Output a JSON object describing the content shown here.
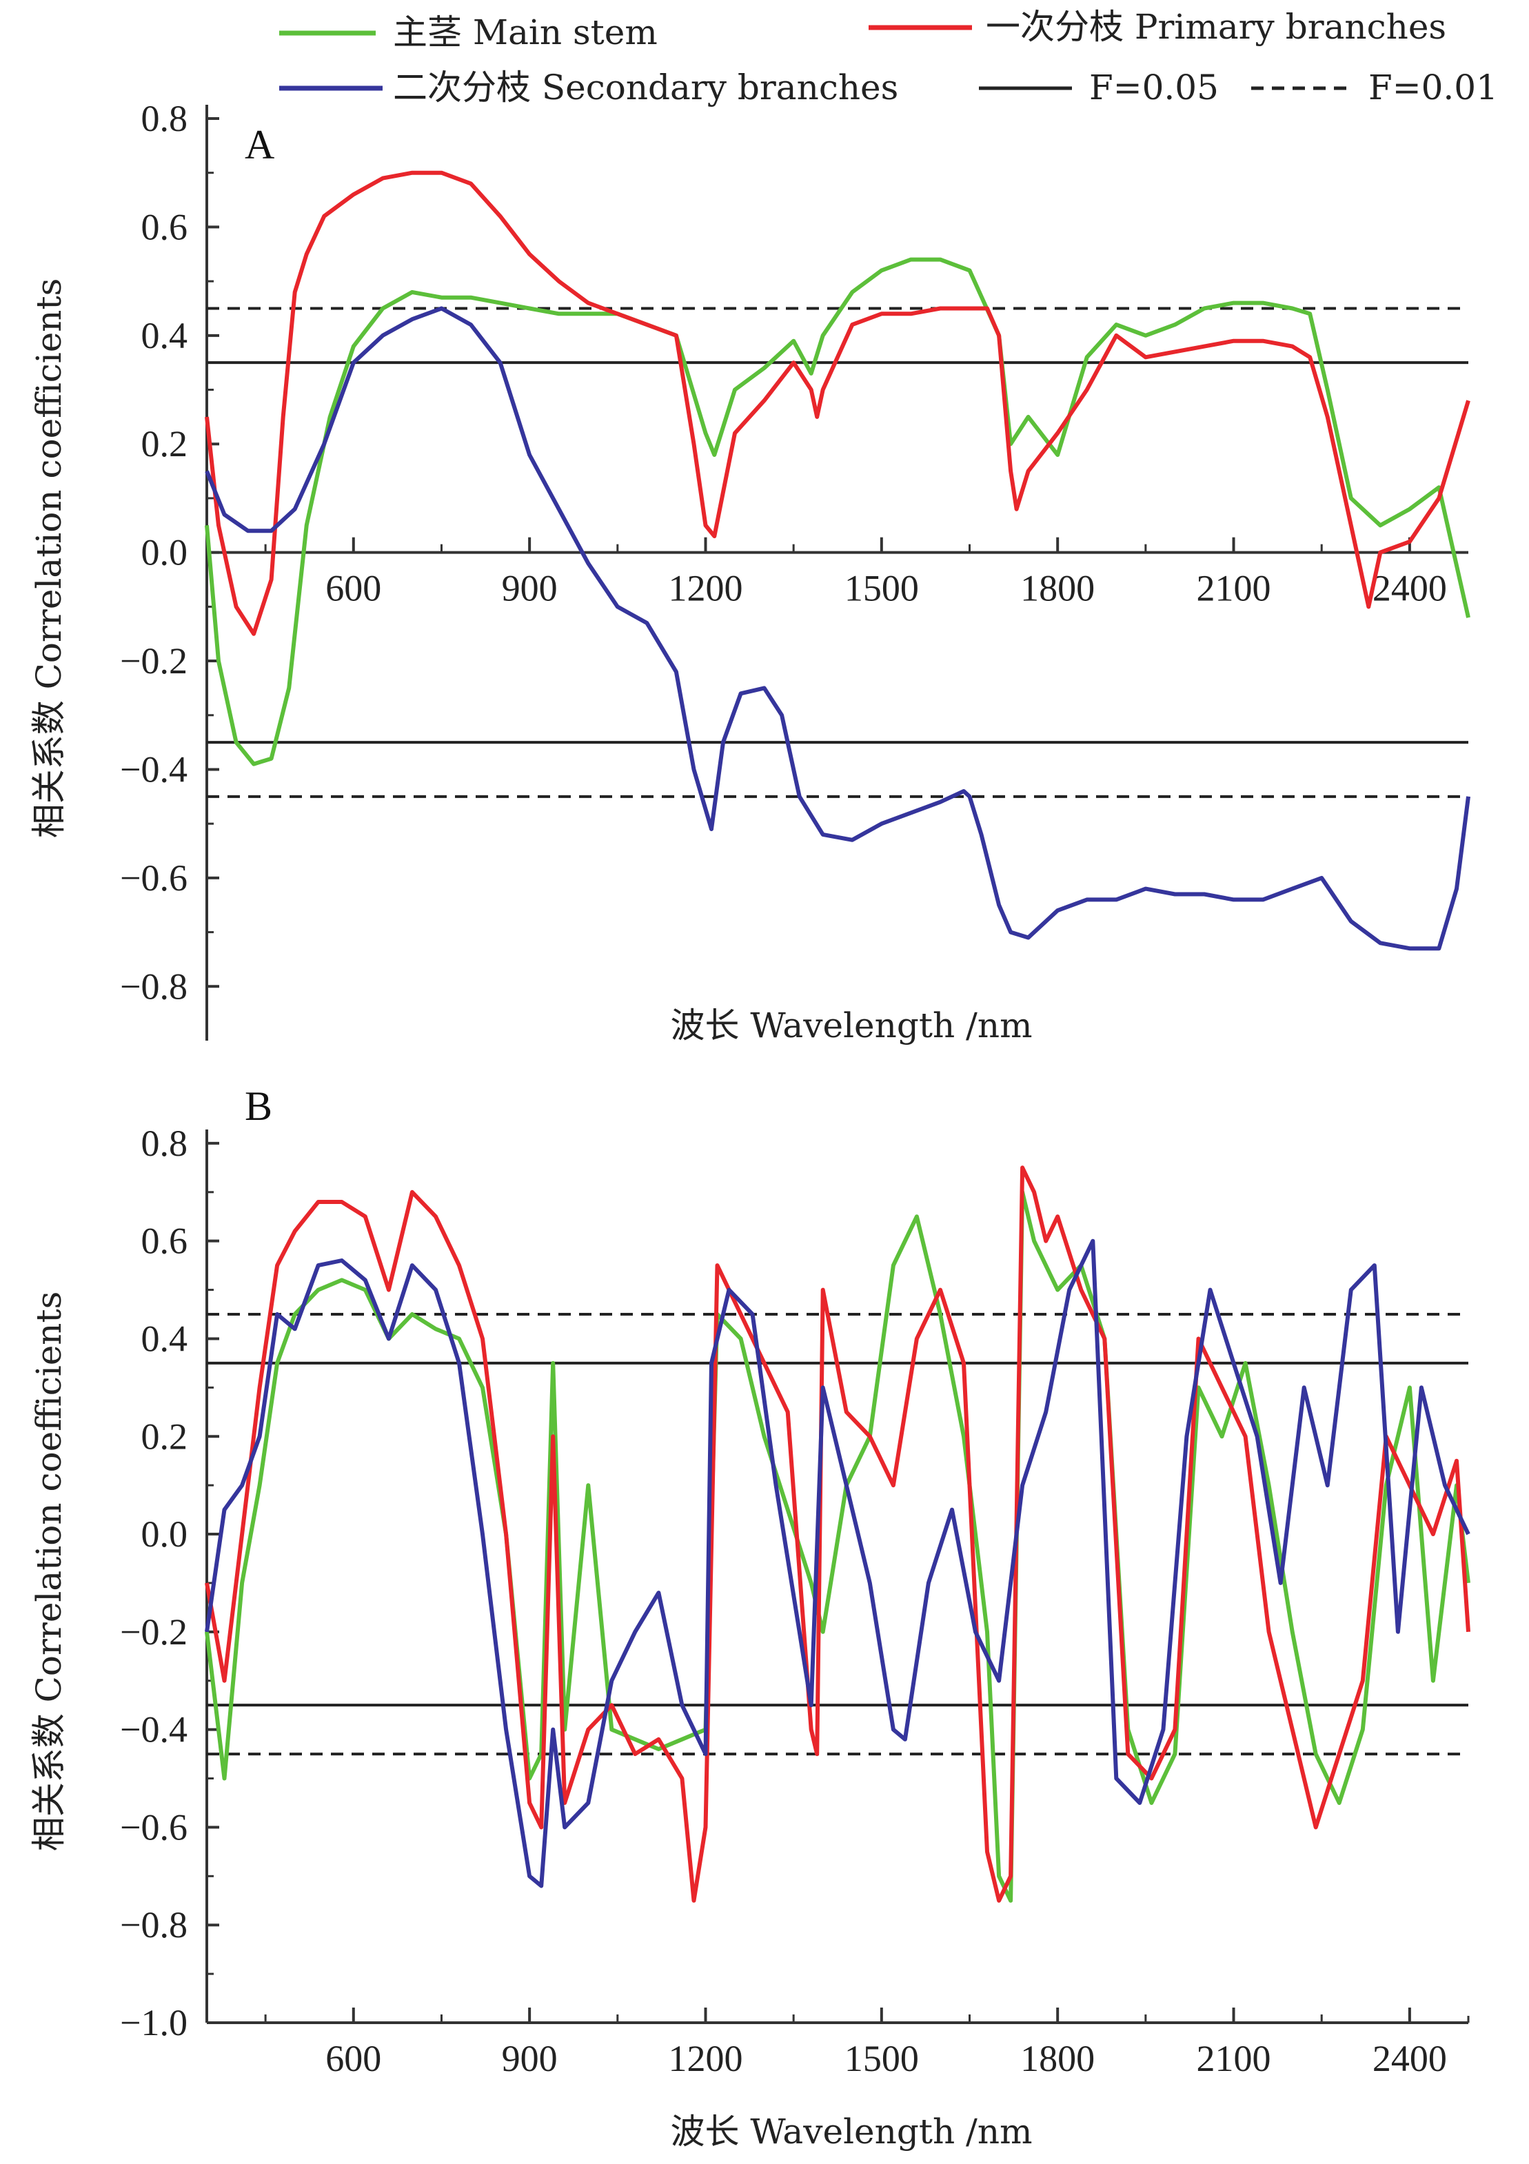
{
  "legend": [
    {
      "label": "主茎  Main stem",
      "color": "#5cbf3a",
      "style": "line"
    },
    {
      "label": "一次分枝  Primary branches",
      "color": "#e8262b",
      "style": "line"
    },
    {
      "label": "二次分枝 Secondary branches",
      "color": "#35359c",
      "style": "line"
    },
    {
      "label": "F=0.05",
      "color": "#222222",
      "style": "solid"
    },
    {
      "label": "F=0.01",
      "color": "#222222",
      "style": "dashed"
    }
  ],
  "chart_data": [
    {
      "panel": "A",
      "type": "line",
      "xlabel": "波长 Wavelength /nm",
      "ylabel": "相关系数 Correlation coefficients",
      "xlim": [
        350,
        2500
      ],
      "ylim": [
        -0.9,
        0.8
      ],
      "xticks": [
        600,
        900,
        1200,
        1500,
        1800,
        2100,
        2400
      ],
      "yticks": [
        0.8,
        0.6,
        0.4,
        0.2,
        0.0,
        -0.2,
        -0.4,
        -0.6,
        -0.8
      ],
      "ytick_labels": [
        "0.8",
        "0.6",
        "0.4",
        "0.2",
        "0.0",
        "−0.2",
        "−0.4",
        "−0.6",
        "−0.8"
      ],
      "threshold_lines": [
        {
          "label": "F=0.05",
          "style": "solid",
          "values": [
            0.35,
            -0.35
          ]
        },
        {
          "label": "F=0.01",
          "style": "dashed",
          "values": [
            0.45,
            -0.45
          ]
        }
      ],
      "series": [
        {
          "name": "主茎 Main stem",
          "color": "#5cbf3a",
          "x": [
            350,
            370,
            400,
            430,
            460,
            490,
            520,
            560,
            600,
            650,
            700,
            750,
            800,
            850,
            900,
            950,
            1000,
            1050,
            1100,
            1150,
            1200,
            1215,
            1250,
            1300,
            1350,
            1380,
            1400,
            1450,
            1500,
            1550,
            1600,
            1650,
            1700,
            1720,
            1750,
            1800,
            1850,
            1900,
            1950,
            2000,
            2050,
            2100,
            2150,
            2200,
            2230,
            2260,
            2300,
            2350,
            2400,
            2450,
            2500
          ],
          "y": [
            0.05,
            -0.2,
            -0.35,
            -0.39,
            -0.38,
            -0.25,
            0.05,
            0.25,
            0.38,
            0.45,
            0.48,
            0.47,
            0.47,
            0.46,
            0.45,
            0.44,
            0.44,
            0.44,
            0.42,
            0.4,
            0.22,
            0.18,
            0.3,
            0.34,
            0.39,
            0.33,
            0.4,
            0.48,
            0.52,
            0.54,
            0.54,
            0.52,
            0.4,
            0.2,
            0.25,
            0.18,
            0.36,
            0.42,
            0.4,
            0.42,
            0.45,
            0.46,
            0.46,
            0.45,
            0.44,
            0.3,
            0.1,
            0.05,
            0.08,
            0.12,
            -0.12
          ]
        },
        {
          "name": "一次分枝 Primary branches",
          "color": "#e8262b",
          "x": [
            350,
            370,
            400,
            430,
            460,
            480,
            500,
            520,
            550,
            600,
            650,
            700,
            750,
            800,
            850,
            900,
            950,
            1000,
            1050,
            1100,
            1150,
            1180,
            1200,
            1215,
            1250,
            1300,
            1350,
            1380,
            1390,
            1400,
            1450,
            1500,
            1550,
            1600,
            1650,
            1680,
            1700,
            1720,
            1730,
            1750,
            1800,
            1850,
            1900,
            1950,
            2000,
            2050,
            2100,
            2150,
            2200,
            2230,
            2260,
            2300,
            2330,
            2350,
            2400,
            2450,
            2500
          ],
          "y": [
            0.25,
            0.05,
            -0.1,
            -0.15,
            -0.05,
            0.25,
            0.48,
            0.55,
            0.62,
            0.66,
            0.69,
            0.7,
            0.7,
            0.68,
            0.62,
            0.55,
            0.5,
            0.46,
            0.44,
            0.42,
            0.4,
            0.2,
            0.05,
            0.03,
            0.22,
            0.28,
            0.35,
            0.3,
            0.25,
            0.3,
            0.42,
            0.44,
            0.44,
            0.45,
            0.45,
            0.45,
            0.4,
            0.15,
            0.08,
            0.15,
            0.22,
            0.3,
            0.4,
            0.36,
            0.37,
            0.38,
            0.39,
            0.39,
            0.38,
            0.36,
            0.25,
            0.05,
            -0.1,
            0.0,
            0.02,
            0.1,
            0.28
          ]
        },
        {
          "name": "二次分枝 Secondary branches",
          "color": "#35359c",
          "x": [
            350,
            380,
            420,
            460,
            500,
            550,
            600,
            650,
            700,
            750,
            800,
            850,
            900,
            950,
            1000,
            1050,
            1100,
            1150,
            1180,
            1210,
            1230,
            1260,
            1300,
            1330,
            1360,
            1400,
            1450,
            1500,
            1550,
            1600,
            1640,
            1650,
            1670,
            1700,
            1720,
            1750,
            1780,
            1800,
            1850,
            1900,
            1950,
            2000,
            2050,
            2100,
            2150,
            2200,
            2250,
            2300,
            2350,
            2400,
            2450,
            2480,
            2500
          ],
          "y": [
            0.15,
            0.07,
            0.04,
            0.04,
            0.08,
            0.2,
            0.35,
            0.4,
            0.43,
            0.45,
            0.42,
            0.35,
            0.18,
            0.08,
            -0.02,
            -0.1,
            -0.13,
            -0.22,
            -0.4,
            -0.51,
            -0.35,
            -0.26,
            -0.25,
            -0.3,
            -0.45,
            -0.52,
            -0.53,
            -0.5,
            -0.48,
            -0.46,
            -0.44,
            -0.45,
            -0.52,
            -0.65,
            -0.7,
            -0.71,
            -0.68,
            -0.66,
            -0.64,
            -0.64,
            -0.62,
            -0.63,
            -0.63,
            -0.64,
            -0.64,
            -0.62,
            -0.6,
            -0.68,
            -0.72,
            -0.73,
            -0.73,
            -0.62,
            -0.45
          ]
        }
      ]
    },
    {
      "panel": "B",
      "type": "line",
      "xlabel": "波长 Wavelength /nm",
      "ylabel": "相关系数 Correlation coefficients",
      "xlim": [
        350,
        2500
      ],
      "ylim": [
        -1.0,
        0.9
      ],
      "xticks": [
        600,
        900,
        1200,
        1500,
        1800,
        2100,
        2400
      ],
      "yticks": [
        0.8,
        0.6,
        0.4,
        0.2,
        0.0,
        -0.2,
        -0.4,
        -0.6,
        -0.8,
        -1.0
      ],
      "ytick_labels": [
        "0.8",
        "0.6",
        "0.4",
        "0.2",
        "0.0",
        "−0.2",
        "−0.4",
        "−0.6",
        "−0.8",
        "−1.0"
      ],
      "threshold_lines": [
        {
          "label": "F=0.05",
          "style": "solid",
          "values": [
            0.35,
            -0.35
          ]
        },
        {
          "label": "F=0.01",
          "style": "dashed",
          "values": [
            0.45,
            -0.45
          ]
        }
      ],
      "series": [
        {
          "name": "主茎 Main stem",
          "color": "#5cbf3a",
          "x": [
            350,
            380,
            410,
            440,
            470,
            500,
            540,
            580,
            620,
            660,
            700,
            740,
            780,
            820,
            860,
            900,
            920,
            940,
            960,
            1000,
            1040,
            1080,
            1120,
            1160,
            1200,
            1220,
            1260,
            1300,
            1340,
            1380,
            1400,
            1440,
            1480,
            1520,
            1560,
            1600,
            1640,
            1680,
            1700,
            1720,
            1740,
            1760,
            1800,
            1840,
            1880,
            1920,
            1960,
            2000,
            2040,
            2080,
            2120,
            2160,
            2200,
            2240,
            2280,
            2320,
            2360,
            2400,
            2440,
            2480,
            2500
          ],
          "y": [
            -0.2,
            -0.5,
            -0.1,
            0.1,
            0.35,
            0.45,
            0.5,
            0.52,
            0.5,
            0.4,
            0.45,
            0.42,
            0.4,
            0.3,
            0.0,
            -0.5,
            -0.45,
            0.35,
            -0.4,
            0.1,
            -0.4,
            -0.42,
            -0.44,
            -0.42,
            -0.4,
            0.45,
            0.4,
            0.2,
            0.05,
            -0.1,
            -0.2,
            0.1,
            0.2,
            0.55,
            0.65,
            0.45,
            0.2,
            -0.2,
            -0.7,
            -0.75,
            0.7,
            0.6,
            0.5,
            0.55,
            0.4,
            -0.4,
            -0.55,
            -0.45,
            0.3,
            0.2,
            0.35,
            0.1,
            -0.2,
            -0.45,
            -0.55,
            -0.4,
            0.1,
            0.3,
            -0.3,
            0.1,
            -0.1
          ]
        },
        {
          "name": "一次分枝 Primary branches",
          "color": "#e8262b",
          "x": [
            350,
            380,
            410,
            440,
            470,
            500,
            540,
            580,
            620,
            660,
            700,
            740,
            780,
            820,
            860,
            900,
            920,
            940,
            960,
            1000,
            1040,
            1080,
            1120,
            1160,
            1180,
            1200,
            1220,
            1260,
            1300,
            1340,
            1380,
            1390,
            1400,
            1440,
            1480,
            1520,
            1560,
            1600,
            1640,
            1680,
            1700,
            1720,
            1740,
            1760,
            1780,
            1800,
            1840,
            1880,
            1920,
            1960,
            2000,
            2040,
            2080,
            2120,
            2160,
            2200,
            2240,
            2280,
            2320,
            2360,
            2400,
            2440,
            2480,
            2500
          ],
          "y": [
            -0.1,
            -0.3,
            0.0,
            0.3,
            0.55,
            0.62,
            0.68,
            0.68,
            0.65,
            0.5,
            0.7,
            0.65,
            0.55,
            0.4,
            0.0,
            -0.55,
            -0.6,
            0.2,
            -0.55,
            -0.4,
            -0.35,
            -0.45,
            -0.42,
            -0.5,
            -0.75,
            -0.6,
            0.55,
            0.45,
            0.35,
            0.25,
            -0.4,
            -0.45,
            0.5,
            0.25,
            0.2,
            0.1,
            0.4,
            0.5,
            0.35,
            -0.65,
            -0.75,
            -0.7,
            0.75,
            0.7,
            0.6,
            0.65,
            0.5,
            0.4,
            -0.45,
            -0.5,
            -0.4,
            0.4,
            0.3,
            0.2,
            -0.2,
            -0.4,
            -0.6,
            -0.45,
            -0.3,
            0.2,
            0.1,
            0.0,
            0.15,
            -0.2
          ]
        },
        {
          "name": "二次分枝 Secondary branches",
          "color": "#35359c",
          "x": [
            350,
            380,
            410,
            440,
            470,
            500,
            540,
            580,
            620,
            660,
            700,
            740,
            780,
            820,
            860,
            900,
            920,
            940,
            960,
            1000,
            1040,
            1080,
            1120,
            1160,
            1200,
            1210,
            1240,
            1280,
            1320,
            1360,
            1380,
            1400,
            1440,
            1480,
            1520,
            1540,
            1580,
            1620,
            1660,
            1700,
            1720,
            1740,
            1780,
            1820,
            1860,
            1900,
            1940,
            1980,
            2020,
            2060,
            2100,
            2140,
            2180,
            2220,
            2260,
            2300,
            2340,
            2380,
            2420,
            2460,
            2500
          ],
          "y": [
            -0.2,
            0.05,
            0.1,
            0.2,
            0.45,
            0.42,
            0.55,
            0.56,
            0.52,
            0.4,
            0.55,
            0.5,
            0.35,
            0.0,
            -0.4,
            -0.7,
            -0.72,
            -0.4,
            -0.6,
            -0.55,
            -0.3,
            -0.2,
            -0.12,
            -0.35,
            -0.45,
            0.35,
            0.5,
            0.45,
            0.1,
            -0.2,
            -0.35,
            0.3,
            0.1,
            -0.1,
            -0.4,
            -0.42,
            -0.1,
            0.05,
            -0.2,
            -0.3,
            -0.1,
            0.1,
            0.25,
            0.5,
            0.6,
            -0.5,
            -0.55,
            -0.4,
            0.2,
            0.5,
            0.35,
            0.2,
            -0.1,
            0.3,
            0.1,
            0.5,
            0.55,
            -0.2,
            0.3,
            0.1,
            0.0
          ]
        }
      ]
    }
  ]
}
